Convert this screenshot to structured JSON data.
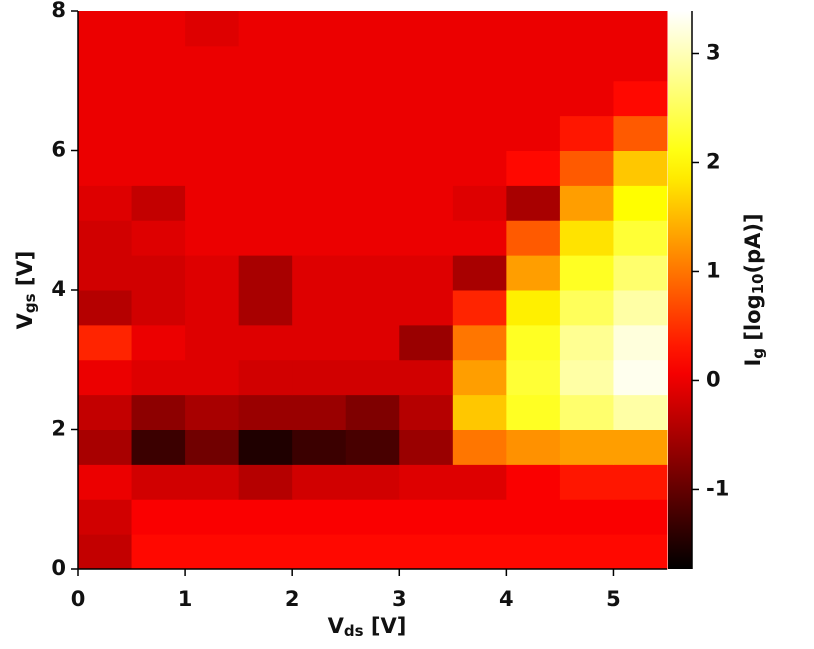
{
  "chart_data": {
    "type": "heatmap",
    "colormap": "hot",
    "x_label": [
      "V",
      "ds",
      " [V]"
    ],
    "y_label": [
      "V",
      "gs",
      " [V]"
    ],
    "colorbar_label": [
      "I",
      "g",
      " [log",
      "10",
      "(pA)]"
    ],
    "x": [
      0.25,
      0.75,
      1.25,
      1.75,
      2.25,
      2.75,
      3.25,
      3.75,
      4.25,
      4.75,
      5.25
    ],
    "y": [
      0.25,
      0.75,
      1.25,
      1.75,
      2.25,
      2.75,
      3.25,
      3.75,
      4.25,
      4.75,
      5.25,
      5.75,
      6.25,
      6.75,
      7.25,
      7.75
    ],
    "z": [
      [
        -0.3,
        0.2,
        0.2,
        0.2,
        0.2,
        0.2,
        0.2,
        0.2,
        0.2,
        0.2,
        0.2
      ],
      [
        -0.2,
        0.1,
        0.1,
        0.1,
        0.1,
        0.1,
        0.1,
        0.1,
        0.1,
        0.1,
        0.1
      ],
      [
        0,
        -0.2,
        -0.2,
        -0.4,
        -0.2,
        -0.2,
        -0.1,
        -0.1,
        0.1,
        0.3,
        0.3
      ],
      [
        -0.5,
        -1.3,
        -0.9,
        -1.5,
        -1.3,
        -1.2,
        -0.6,
        1.0,
        1.2,
        1.3,
        1.3
      ],
      [
        -0.3,
        -0.7,
        -0.5,
        -0.6,
        -0.6,
        -0.8,
        -0.4,
        1.6,
        2.2,
        2.6,
        2.9
      ],
      [
        0,
        -0.1,
        -0.1,
        -0.2,
        -0.2,
        -0.2,
        -0.2,
        1.3,
        2.3,
        2.9,
        3.3
      ],
      [
        0.4,
        0,
        -0.1,
        -0.1,
        -0.1,
        -0.1,
        -0.6,
        1.0,
        2.2,
        2.8,
        3.2
      ],
      [
        -0.4,
        -0.2,
        -0.1,
        -0.5,
        -0.1,
        -0.1,
        -0.1,
        0.4,
        1.9,
        2.5,
        2.9
      ],
      [
        -0.2,
        -0.2,
        -0.1,
        -0.5,
        -0.1,
        -0.1,
        -0.1,
        -0.5,
        1.3,
        2.2,
        2.6
      ],
      [
        -0.2,
        -0.1,
        0,
        0,
        0,
        0,
        0,
        0,
        0.8,
        1.8,
        2.3
      ],
      [
        -0.1,
        -0.3,
        0,
        0,
        0,
        0,
        0,
        -0.1,
        -0.5,
        1.3,
        2.0
      ],
      [
        0,
        0,
        0,
        0,
        0,
        0,
        0,
        0,
        0.2,
        0.8,
        1.6
      ],
      [
        0,
        0,
        0,
        0,
        0,
        0,
        0,
        0,
        0,
        0.3,
        0.8
      ],
      [
        0,
        0,
        0,
        0,
        0,
        0,
        0,
        0,
        0,
        0,
        0.2
      ],
      [
        0,
        0,
        0,
        0,
        0,
        0,
        0,
        0,
        0,
        0,
        0
      ],
      [
        0,
        0,
        -0.1,
        0,
        0,
        0,
        0,
        0,
        0,
        0,
        0
      ]
    ],
    "xlim": [
      0,
      5.5
    ],
    "ylim": [
      0,
      8
    ],
    "xticks": [
      0,
      1,
      2,
      3,
      4,
      5
    ],
    "yticks": [
      0,
      2,
      4,
      6,
      8
    ],
    "zlim": [
      -1.73,
      3.39
    ],
    "zticks": [
      -1,
      0,
      1,
      2,
      3
    ]
  }
}
